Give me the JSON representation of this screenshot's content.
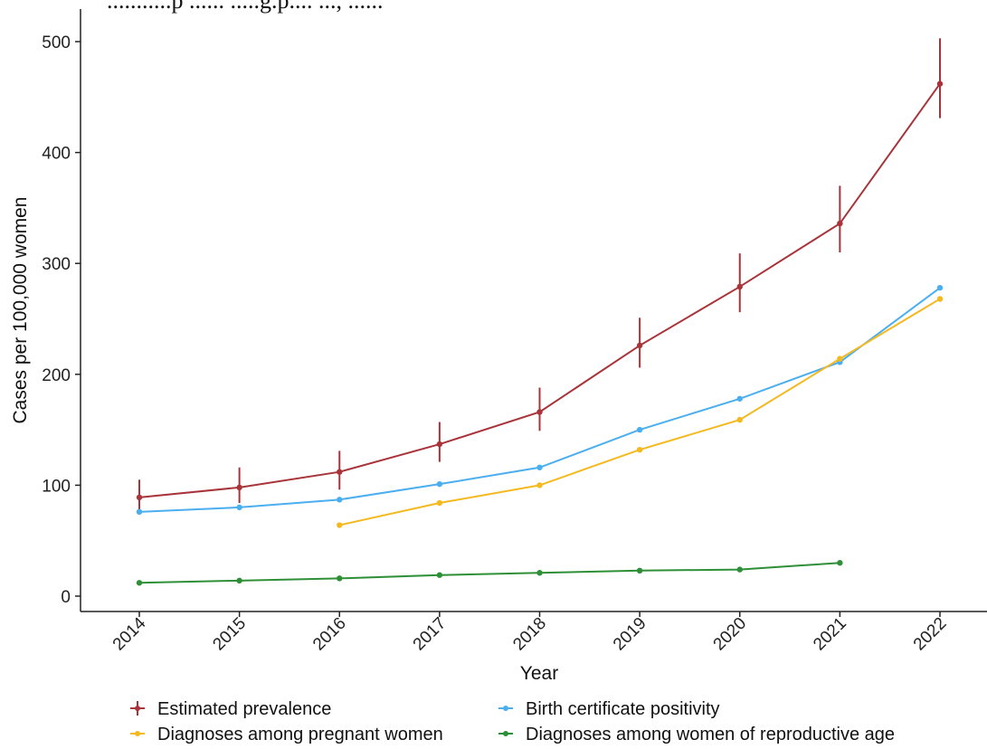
{
  "header_fragment": "...........p ...... .....g.p.... ..., ......",
  "chart_data": {
    "type": "line",
    "title": "",
    "xlabel": "Year",
    "ylabel": "Cases per 100,000 women",
    "ylim": [
      -15,
      515
    ],
    "yticks": [
      0,
      100,
      200,
      300,
      400,
      500
    ],
    "x": [
      2014,
      2015,
      2016,
      2017,
      2018,
      2019,
      2020,
      2021,
      2022
    ],
    "grid": false,
    "legend_position": "bottom",
    "series": [
      {
        "name": "Estimated prevalence",
        "color": "#a8343a",
        "values": [
          89,
          98,
          112,
          137,
          166,
          226,
          279,
          336,
          462
        ],
        "error_low": [
          76,
          84,
          96,
          121,
          149,
          206,
          256,
          310,
          431
        ],
        "error_high": [
          105,
          116,
          131,
          157,
          188,
          251,
          309,
          370,
          503
        ]
      },
      {
        "name": "Birth certificate positivity",
        "color": "#4aaeef",
        "values": [
          76,
          80,
          87,
          101,
          116,
          150,
          178,
          211,
          278
        ]
      },
      {
        "name": "Diagnoses among pregnant women",
        "color": "#f5b920",
        "values": [
          null,
          null,
          64,
          84,
          100,
          132,
          159,
          214,
          268
        ]
      },
      {
        "name": "Diagnoses among women of reproductive age",
        "color": "#2d8f36",
        "values": [
          12,
          14,
          16,
          19,
          21,
          23,
          24,
          30,
          null
        ]
      }
    ]
  }
}
